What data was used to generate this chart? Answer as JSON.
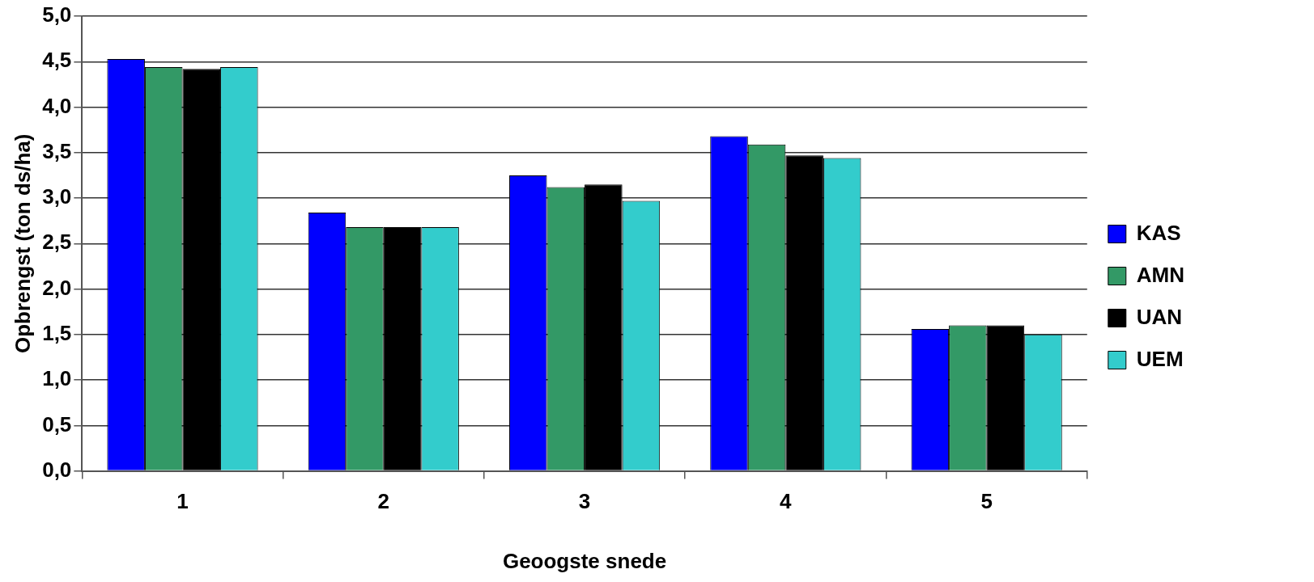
{
  "chart_data": {
    "type": "bar",
    "xlabel": "Geoogste snede",
    "ylabel": "Opbrengst (ton ds/ha)",
    "categories": [
      "1",
      "2",
      "3",
      "4",
      "5"
    ],
    "series": [
      {
        "name": "KAS",
        "color": "#0000ff",
        "values": [
          4.53,
          2.84,
          3.25,
          3.68,
          1.56
        ]
      },
      {
        "name": "AMN",
        "color": "#339966",
        "values": [
          4.44,
          2.68,
          3.12,
          3.59,
          1.6
        ]
      },
      {
        "name": "UAN",
        "color": "#000000",
        "values": [
          4.42,
          2.68,
          3.15,
          3.47,
          1.6
        ]
      },
      {
        "name": "UEM",
        "color": "#33cccc",
        "values": [
          4.44,
          2.68,
          2.97,
          3.44,
          1.5
        ]
      }
    ],
    "ylim": [
      0,
      5
    ],
    "yticks": [
      {
        "value": 0,
        "label": "0,0"
      },
      {
        "value": 0.5,
        "label": "0,5"
      },
      {
        "value": 1,
        "label": "1,0"
      },
      {
        "value": 1.5,
        "label": "1,5"
      },
      {
        "value": 2,
        "label": "2,0"
      },
      {
        "value": 2.5,
        "label": "2,5"
      },
      {
        "value": 3,
        "label": "3,0"
      },
      {
        "value": 3.5,
        "label": "3,5"
      },
      {
        "value": 4,
        "label": "4,0"
      },
      {
        "value": 4.5,
        "label": "4,5"
      },
      {
        "value": 5,
        "label": "5,0"
      }
    ],
    "grid": "y",
    "legend": "right"
  }
}
